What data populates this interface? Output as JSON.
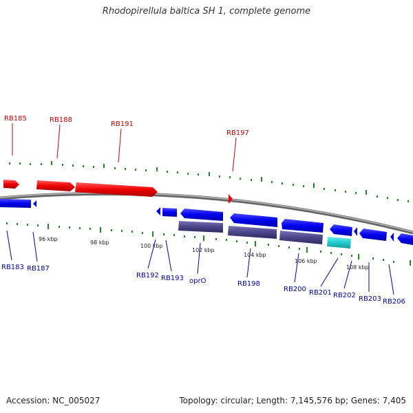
{
  "title": "Rhodopirellula baltica SH 1, complete genome",
  "footer": {
    "accession": "Accession: NC_005027",
    "summary": "Topology: circular; Length: 7,145,576 bp; Genes: 7,405"
  },
  "colors": {
    "forward_gene": "#ee0000",
    "reverse_gene": "#0000ee",
    "reverse_rna": "#4a4488",
    "special_feature": "#22cccc",
    "backbone": "#888888",
    "ticks": "#228822",
    "forward_label": "#cc0000",
    "reverse_label": "#0000aa"
  },
  "ruler_labels": [
    "96 kbp",
    "98 kbp",
    "100 kbp",
    "102 kbp",
    "104 kbp",
    "106 kbp",
    "108 kbp"
  ],
  "forward_labels": [
    "RB185",
    "RB188",
    "RB191",
    "RB197"
  ],
  "reverse_labels": [
    "RB183",
    "RB187",
    "RB192",
    "RB193",
    "oprO",
    "RB198",
    "RB200",
    "RB201",
    "RB202",
    "RB203",
    "RB206"
  ]
}
